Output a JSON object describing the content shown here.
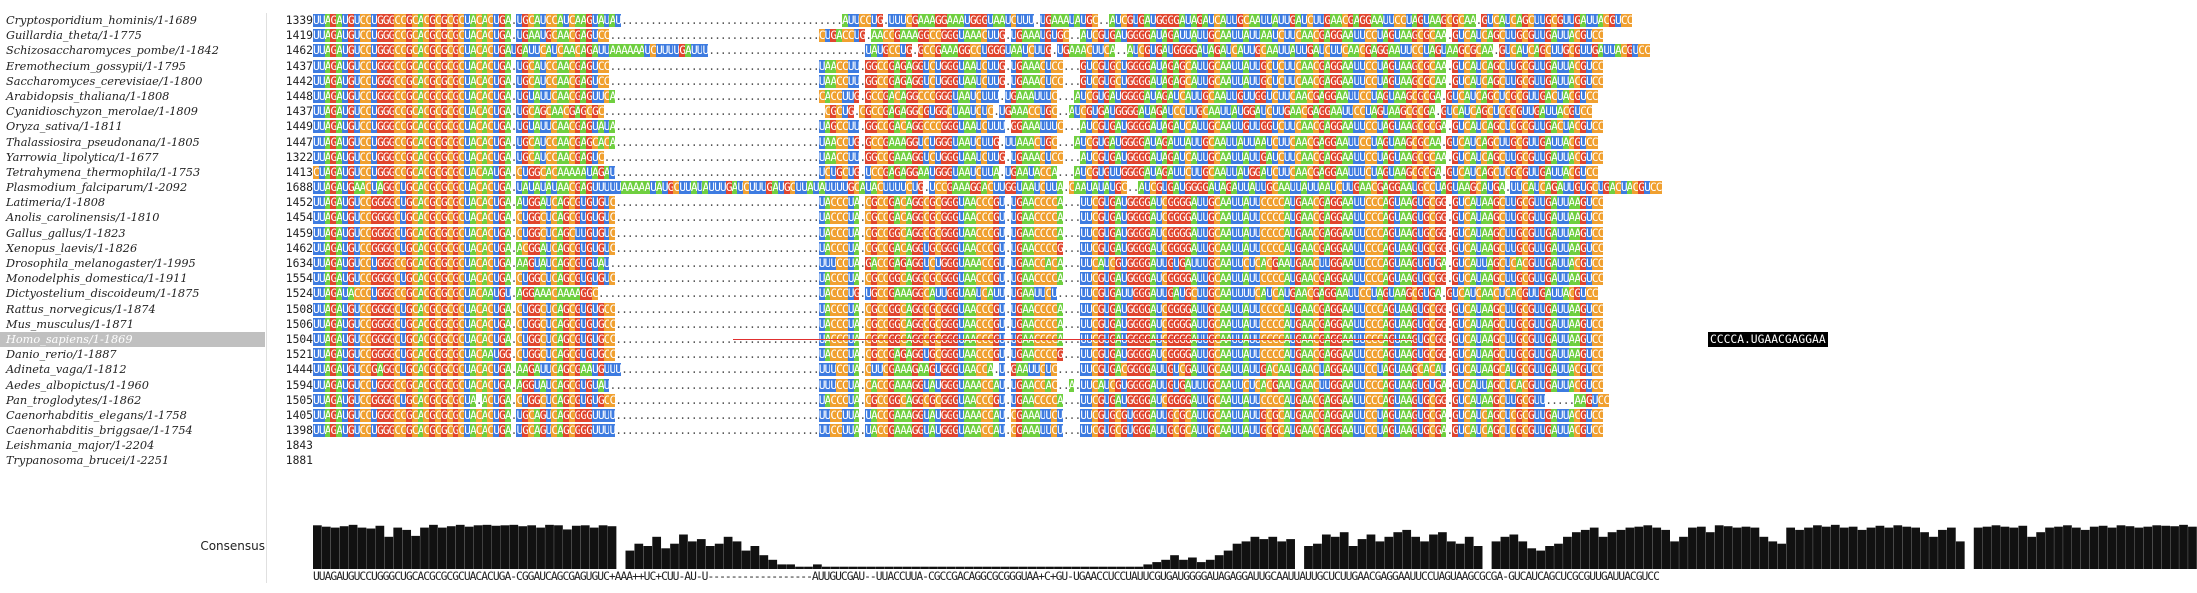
{
  "app": {
    "panel": "multiple-sequence-alignment"
  },
  "sequences": [
    {
      "name": "Cryptosporidium_hominis/1-1689",
      "start": "1339",
      "seq": "UUAGAUGUCCUGGGCCGCACGCGCGCUACACUGA.UGCAUCCAUCAAGUAUAU......................................AUUCCUG.UUUCGAAAGGAAAUGGGUAAUCUUU.UGAAAUAUGC..AUCGUGAUGGGGAUAGAUCAUUGCAAUUAUUGAUCUUGAACGAGGAAUUCCUAGUAAGCGCAA.GUCAUCAGCUUGCGUUGAUUACGUCC"
    },
    {
      "name": "Guillardia_theta/1-1775",
      "start": "1419",
      "seq": "UUAGAUGUCCUGGGCCGCACGCGCGCUACACUGA.UGAAUGCAACGAGUCC....................................CUGACCUG.AACCGAAAGGCCGGGUAAACUUG.UGAAAUGUGC..AUCGUGAUGGGGAUAGAUUAUUGCAAUUAUUAAUCUUCAACGAGGAAUUCCUAGUAAGCGCAA.GUCAUCAGCUUGCGUUGAUUACGUCC"
    },
    {
      "name": "Schizosaccharomyces_pombe/1-1842",
      "start": "1462",
      "seq": "UUAGAUGUCCUGGGCCGCACGCGCGCUACACUGAUGAUUCAUCAACAGAUUAAAAAAUCUUUUGAUUU...........................UAUGCCUG.GCCGAAAGGCCUGGGUAAUCUUG.UGAAACUUCA..AUCGUGAUGGGGAUAGAUCAUUGCAAUUAUUGAUCUUCAACGAGGAAUUCCUAGUAAGCGCAA.GUCAUCAGCUUGCGUUGAUUACGUCC"
    },
    {
      "name": "Eremothecium_gossypii/1-1795",
      "start": "1437",
      "seq": "UUAGAUGUCCUGGGCCGCACGCGCGCUACACUGA.UGCAUCCAACGAGUCC....................................UAACCUU.GGCCGAGAGGUCUGGGUAAUCUUG.UGAAACUCC...GUCGUGCUGGGGAUAGAGCAUUGCAAUUAUUGCUCUUCAACGAGGAAUUCCUAGUAAGCGCAA.GUCAUCAGCUUGCGUUGAUUACGUCC"
    },
    {
      "name": "Saccharomyces_cerevisiae/1-1800",
      "start": "1442",
      "seq": "UUAGAUGUCCUGGGCCGCACGCGCGCUACACUGA.UGCAUCCAACGAGUCC....................................UAACCUU.GGCCGAGAGGUCUGGGUAAUCUUG.UGAAACUCC...GUCGUGCUGGGGAUAGAGCAUUGCAAUUAUUGCUCUUCAACGAGGAAUUCCUAGUAAGCGCAA.GUCAUCAGCUUGCGUUGAUUACGUCC"
    },
    {
      "name": "Arabidopsis_thaliana/1-1808",
      "start": "1448",
      "seq": "UUAGAUGUCCUGGGCCGCACGCGCGCUACACUGA.UGUAUUCAACGAGUUCA...................................CACCUUG.GCCGACAGGCCCGGGUAAUCUUU.UGAAAUUUC...AUCGUGAUGGGGAUAGAUCAUUGCAAUUGUUGGUCUUCAACGAGGAAUUCCUAGUAAGCGCGA.GUCAUCAGCUCGCGUUGACUACGUCC"
    },
    {
      "name": "Cyanidioschyzon_merolae/1-1809",
      "start": "1437",
      "seq": "UUAGAUGUCCUGGGCCGCACGCGCGCUACACUGA.UGCAGCAACGAGCGC......................................CGCUG.CGCCGAGAGGCGUGGCUAAUCUC.UGAAACCUGC..AUCGUGAUGGGGAUAGAUCCUUGCAAUUAUGGAUCUUGAACGAGGAAUUCCUAGUAAGCGCGA.GUCAUCAGCUCGCGUUGAUUACGUCC"
    },
    {
      "name": "Oryza_sativa/1-1811",
      "start": "1449",
      "seq": "UUAGAUGUCCUGGGCCGCACGCGCGCUACACUGA.UGUAUUCAACGAGUAUA...................................UAGCCUU.GGCCGACAGGCCCGGGUAAUCUUU.GGAAAUUUC...AUCGUGAUGGGGAUAGAUCAUUGCAAUUGUUGGUCUUCAACGAGGAAUUCCUAGUAAGCGCGA.GUCAUCAGCUCGCGUUGACUACGUCC"
    },
    {
      "name": "Thalassiosira_pseudonana/1-1805",
      "start": "1447",
      "seq": "UUAGAUGUCCUGGGCCGCACGCGCGCUACACUGA.UGCAUCCAACGAGCACA...................................UAACCUG.GCCGAAAGGUCUGGGUAAUCUUG.UUAAACUGC...AUCGUGAUGGGGAUAGAUUAUUGCAAUUAUUAAUCUUCAACGAGGAAUUCCUAGUAAGCGCAA.GUCAUCAGCUUGCGUUGAUUACGUCC"
    },
    {
      "name": "Yarrowia_lipolytica/1-1677",
      "start": "1322",
      "seq": "UUAGAUGUCCUGGGCCGCACGCGCGCUACACUGA.UGCAUCCAACGAGUC.....................................UAACCUU.GGCCGAAAGGUCUGGGUAAUCUUG.UGAAACUCC...AUCGUGAUGGGGAUAGAUCAUUGCAAUUAUUGAUCUUCAACGAGGAAUUCCUAGUAAGCGCAA.GUCAUCAGCUUGCGUUGAUUACGUCC"
    },
    {
      "name": "Tetrahymena_thermophila/1-1753",
      "start": "1413",
      "seq": "CUAGAUGUCCUGGGCCGCACGCGCGCUACAAUGA.CUGGCACAAAAAUAGAU...................................UCUGCUG.UCCGAGAGGAAUGGGUAAUCUUA.UGAAUACCA...AUCGUGUUGGGGAUAGAUUCUUGCAAUUAUGGAUCUUCAACGAGGAAUUUCUAGUAAGCGCGA.GUCAUCAGCUCGCGUUGAUUACGUCC"
    },
    {
      "name": "Plasmodium_falciparum/1-2092",
      "start": "1688",
      "seq": "UUAGAUGAACUAGGCUGCACGCGCGCUACACUGA.UAUAUAUAACGAGUUUUUAAAAAUAUGCUUAUAUUUGAUCUUUGAUGCUUAUAUUUUGCAUACUUUUCUG.UCCGAAAGGACUUGGUAAUCUUA.CAAUAUAUGC..AUCGUGAUGGGGAUAGAUUAUUGCAAUUAUUAAUCUUGAACGAGGAAUGCCUAGUAAGCAUGA.UUCAUCAGAUUGUGCUGACUACGUCC"
    },
    {
      "name": "Latimeria/1-1808",
      "start": "1452",
      "seq": "UUAGAUGUCCGGGGCUGCACGCGCGCUACACUGA.AUGGAUCAGCGUGUGUC...................................UACCCUA.CGCCGACAGGCGCGGGUAACCCGU.UGAACCCCA...UUCGUGAUGGGGAUCGGGGAUUGCAAUUAUUCCCCAUGAACGAGGAAUUCCCAGUAAGUGCGG.GUCAUAAGCUUGCGUUGAUUAAGUCC"
    },
    {
      "name": "Anolis_carolinensis/1-1810",
      "start": "1454",
      "seq": "UUAGAUGUCCGGGGCUGCACGCGCGCUACACUGA.CUGGCUCAGCGUGUGUC...................................UACCCUA.CGCCGACAGGCGCGGGUAACCCGU.UGAACCCCA...UUCGUGAUGGGGAUCGGGGAUUGCAAUUAUUCCCCAUGAACGAGGAAUUCCCAGUAAGUGCGG.GUCAUAAGCUUGCGUUGAUUAAGUCC"
    },
    {
      "name": "Gallus_gallus/1-1823",
      "start": "1459",
      "seq": "UUAGAUGUCCGGGGCUGCACGCGCGCUACACUGA.CUGGCUCAGCUUGUGUC...................................UACCCUA.CGCCGGCAGGCGCGGGUAACCCGU.UGAACCCCA...UUCGUGAUGGGGAUCGGGGAUUGCAAUUAUUCCCCAUGAACGAGGAAUUCCCAGUAAGUGCGG.GUCAUAAGCUUGCGUUGAUUAAGUCC"
    },
    {
      "name": "Xenopus_laevis/1-1826",
      "start": "1462",
      "seq": "UUAGAUGUCCGGGGCUGCACGCGCGCUACACUGA.ACGGAUCAGCGUGUGUC...................................UACCCUA.CGCCGACAGGUGCGGGUAACCCGU.UGAACCCCG...UUCGUGAUGGGGAUCGGGGAUUGCAAUUAUUCCCCAUGAACGAGGAAUUCCCAGUAAGUGCGG.GUCAUAAGCUUGCGUUGAUUAAGUCC"
    },
    {
      "name": "Drosophila_melanogaster/1-1995",
      "start": "1634",
      "seq": "UUAGAUGUCCUGGGCCGCACGCGCGCUACACUGA.AAGUAUCAGCGUGUAU....................................UUUCCUA.GACCGAGAGGUCUGGGUAAACCGU.UGAACCACA...UUCAUCGUGGGGAUUGUGAUUUGCAAUUCUCACGAAUGAACUUGGAAUUCCCAGUAAGUGUGA.GUCAUUAGCUCACGUUGAUUACGUCC"
    },
    {
      "name": "Monodelphis_domestica/1-1911",
      "start": "1554",
      "seq": "UUAGAUGUCCGGGGCUGCACGCGCGCUACACUGA.CUGGCUCAGCGUGUGUC...................................UACCCUA.CGCCGGCAGGCGCGGGUAACCCGU.UGAACCCCA...UUCGUGAUGGGGAUCGGGGAUUGCAAUUAUUCCCCAUGAACGAGGAAUUCCCAGUAAGUGCGG.GUCAUAAGCUUGCGUUGAUUAAGUCC"
    },
    {
      "name": "Dictyostelium_discoideum/1-1875",
      "start": "1524",
      "seq": "UUAGAUACCCUGGGCCGCACGCGCGCUACAAUGU.AGGAAACAAAAGGC......................................UACCCUG.UGCCGAAAGGCAUUGGUAAUCAUU.UGAAUUCU....UUCGUGAUUGGGAUUGAUGCUUGCAAUUUUCAUCAUGAACGAGGAAUUCCUAGUAAGCGUGA.GUCAUCAACUCACGUUGAUUACGUCC"
    },
    {
      "name": "Rattus_norvegicus/1-1874",
      "start": "1508",
      "seq": "UUAGAUGUCCGGGGCUGCACGCGCGCUACACUGA.CUGGCUCAGCGUGUGCC...................................UACCCUA.CGCCGGCAGGCGCGGGUAACCCGU.UGAACCCCA...UUCGUGAUGGGGAUCGGGGAUUGCAAUUAUUCCCCAUGAACGAGGAAUUCCCAGUAAGUGCGG.GUCAUAAGCUUGCGUUGAUUAAGUCC"
    },
    {
      "name": "Mus_musculus/1-1871",
      "start": "1506",
      "seq": "UUAGAUGUCCGGGGCUGCACGCGCGCUACACUGA.CUGGCUCAGCGUGUGCC...................................UACCCUA.CGCCGGCAGGCGCGGGUAACCCGU.UGAACCCCA...UUCGUGAUGGGGAUCGGGGAUUGCAAUUAUUCCCCAUGAACGAGGAAUUCCCAGUAAGUGCGG.GUCAUAAGCUUGCGUUGAUUAAGUCC"
    },
    {
      "name": "Homo_sapiens/1-1869",
      "start": "1504",
      "seq": "UUAGAUGUCCGGGGCUGCACGCGCGCUACACUGA.CUGGCUCAGCGUGUGCC...................................UACCCUA.CGCCGGCAGGCGCGGGUAACCCGU.UGAACCCCA...UUCGUGAUGGGGAUCGGGGAUUGCAAUUAUUCCCCAUGAACGAGGAAUUCCCAGUAAGUGCGG.GUCAUAAGCUUGCGUUGAUUAAGUCC"
    },
    {
      "name": "Danio_rerio/1-1887",
      "start": "1521",
      "seq": "UUAGAUGUCCGGGGCUGCACGCGCGCUACAAUGG.CUGGCUCAGCGUGUGCC...................................UACCCUA.CGCCGAGAGGUGCGGGUAACCCGU.UGAACCCCG...UUCGUGAUGGGGAUCGGGGAUUGCAAUUAUUCCCCAUGAACGAGGAAUUCCCAGUAAGUGCGG.GUCAUAAGCUUGCGUUGAUUAAGUCC"
    },
    {
      "name": "Adineta_vaga/1-1812",
      "start": "1444",
      "seq": "UUAGAUGUCCGAGGCUGCACGCGCGCUACACUGA.AAGAUUCAGCGAAUGUUU..................................UUUCCUA.CUUCGAAAGAAGUGGGUAACCA.U.GAAUUCUC....UUCGUGACGGGGAUUGUCGAUUGCAAUUAUUGACAAUGAACUAGGAAUUCCUAGUAAGCACAU.GUCAUAAGCAUGCGUUGAUUACGUCC"
    },
    {
      "name": "Aedes_albopictus/1-1960",
      "start": "1594",
      "seq": "UUAGAUGUCCUGGGCCGCACGCGCGCUACACUGA.AGGUAUCAGCGUGUAU....................................UUUCCUA.CACCGAAAGGUAUGGGUAAACCAU.UGAACCAC..A.UUCAUCGUGGGGAUUGUGAUUUGCAAUUCUCACGAAUGAACUUGGAAUUCCCAGUAAGUGUGA.GUCAUUAGCUCACGUUGAUUACGUCC"
    },
    {
      "name": "Pan_troglodytes/1-1862",
      "start": "1505",
      "seq": "UUAGAUGUCCGGGGCUGCACGCGCGCUA.ACUGA.CUGGCUCAGCGUGUGCC...................................UACCCUA.CGCCGGCAGGCGCGGGUAACCCGU.UGAACCCCA...UUCGUGAUGGGGAUCGGGGAUUGCAAUUAUUCCCCAUGAACGAGGAAUUCCCAGUAAGUGCGG.GUCAUAAGCUUGCGUU.....AAGUCC"
    },
    {
      "name": "Caenorhabditis_elegans/1-1758",
      "start": "1405",
      "seq": "UUAGAUGUCCUGGGCCGCACGCGCGCUACACUGA.UGCAGUCAGCGGGUUUU...................................UUCCUUA.UACCGAAAGGUAUGGGUAAACCAU.CGAAAUUCU...UUCGUGCGUGGGAUUGCGCAUUGCAAUUAUUGCGCAUGAACGAGGAAUUCCUAGUAAGUGCGA.GUCAUCAGCUCGCGUUGAUUACGUCC"
    },
    {
      "name": "Caenorhabditis_briggsae/1-1754",
      "start": "1398",
      "seq": "UUAGAUGUCCUGGGCCGCACGCGCGCUACACUGA.UGCAGUCAGCGGGUUUU...................................UUCCUUA.UACCGAAAGGUAUGGGUAAACCAU.CGAAAUUCU...UUCGUGCGUGGGAUUGCGCAUUGCAAUUAUUGCGCAUGAACGAGGAAUUCCUAGUAAGUGCGA.GUCAUCAGCUCGCGUUGAUUACGUCC"
    },
    {
      "name": "Leishmania_major/1-2204",
      "start": "1843",
      "seq": "CUCAAUGUCUUGGGCUGCACGCGCGCUACAAUGA.CAGUGAGAACAAGAAAA...ACG...ACU.........UAUUGCGAA.....CCUACUG.GAUCAAAAGAGGGGAAACCA.C.GGAAUCACGUAGACCCACUUGGGACCGAGGAUUGCAAUUAUUGGUCGCGAACGAGGAAUGUCUCGUAGGCGCAG.CUCAUCAAACUGUGCCGAUUACGUCC"
    },
    {
      "name": "Trypanosoma_brucei/1-2251",
      "start": "1881",
      "seq": "CUCAAUGUCUUGGGCUGCACGCGCGCUACAAUGA.CAGUGAGAACAAGAGUCCGACGCACUUCAC................AAUGUCUG.....CCUACUG.GAUCAAAAGAGGGGAAACCA.C.GGAAUCACGUAGACCCACUUGGGACCGAGGAUUGCAAUUAUUGGUCGCGAACGAGGAAUGUCUCGUAGGCGCAG.CUCAUCAAACUGUGCCGAUUACGUCC"
    }
  ],
  "selected_row_index": 21,
  "selection_label": "CCCCA.UGAACGAGGAA",
  "consensus": {
    "label": "Consensus",
    "sequence": "UUAGAUGUCCUGGGCUGCACGCGCGCUACACUGA-CGGAUCAGCGAGUGUC+AAA++UC+CUU-AU-U------------------AUUGUCGAU--UUACCUUA-CGCCGACAGGCGCGGGUAA+C+GU-UGAACCUCCUAUUCGUGAUGGGGAUAGAGGAUUGCAAUUAUUGCUCUUGAACGAGGAAUUCCUAGUAAGCGCGA-GUCAUCAGCUCGCGUUGAUUACGUCC",
    "bars": [
      0.95,
      0.92,
      0.9,
      0.93,
      0.96,
      0.9,
      0.88,
      0.94,
      0.7,
      0.9,
      0.85,
      0.72,
      0.9,
      0.96,
      0.9,
      0.93,
      0.96,
      0.92,
      0.95,
      0.96,
      0.94,
      0.95,
      0.96,
      0.93,
      0.95,
      0.9,
      0.96,
      0.95,
      0.86,
      0.94,
      0.95,
      0.9,
      0.95,
      0.93,
      0.0,
      0.4,
      0.55,
      0.5,
      0.7,
      0.45,
      0.55,
      0.75,
      0.6,
      0.65,
      0.5,
      0.55,
      0.7,
      0.6,
      0.4,
      0.5,
      0.3,
      0.2,
      0.1,
      0.1,
      0.05,
      0.05,
      0.1,
      0.05,
      0.05,
      0.05,
      0.05,
      0.05,
      0.05,
      0.05,
      0.05,
      0.05,
      0.05,
      0.05,
      0.05,
      0.05,
      0.05,
      0.05,
      0.05,
      0.05,
      0.05,
      0.05,
      0.05,
      0.05,
      0.05,
      0.05,
      0.05,
      0.05,
      0.05,
      0.05,
      0.05,
      0.05,
      0.05,
      0.05,
      0.05,
      0.05,
      0.05,
      0.05,
      0.05,
      0.1,
      0.15,
      0.2,
      0.3,
      0.2,
      0.25,
      0.15,
      0.2,
      0.3,
      0.4,
      0.55,
      0.6,
      0.7,
      0.65,
      0.7,
      0.6,
      0.65,
      0.0,
      0.5,
      0.55,
      0.75,
      0.7,
      0.8,
      0.5,
      0.65,
      0.75,
      0.6,
      0.7,
      0.8,
      0.85,
      0.7,
      0.6,
      0.75,
      0.8,
      0.6,
      0.55,
      0.7,
      0.5,
      0.0,
      0.6,
      0.7,
      0.75,
      0.6,
      0.45,
      0.4,
      0.5,
      0.55,
      0.7,
      0.8,
      0.85,
      0.9,
      0.7,
      0.8,
      0.85,
      0.9,
      0.92,
      0.95,
      0.9,
      0.85,
      0.6,
      0.7,
      0.9,
      0.92,
      0.8,
      0.95,
      0.93,
      0.9,
      0.92,
      0.9,
      0.7,
      0.6,
      0.55,
      0.9,
      0.85,
      0.9,
      0.95,
      0.92,
      0.96,
      0.9,
      0.92,
      0.85,
      0.9,
      0.94,
      0.9,
      0.95,
      0.92,
      0.9,
      0.8,
      0.7,
      0.85,
      0.9,
      0.6,
      0.0,
      0.9,
      0.92,
      0.95,
      0.92,
      0.9,
      0.94,
      0.7,
      0.8,
      0.9,
      0.92,
      0.95,
      0.9,
      0.85,
      0.92,
      0.94,
      0.9,
      0.95,
      0.93,
      0.9,
      0.92,
      0.95,
      0.94,
      0.93,
      0.96,
      0.92
    ]
  }
}
